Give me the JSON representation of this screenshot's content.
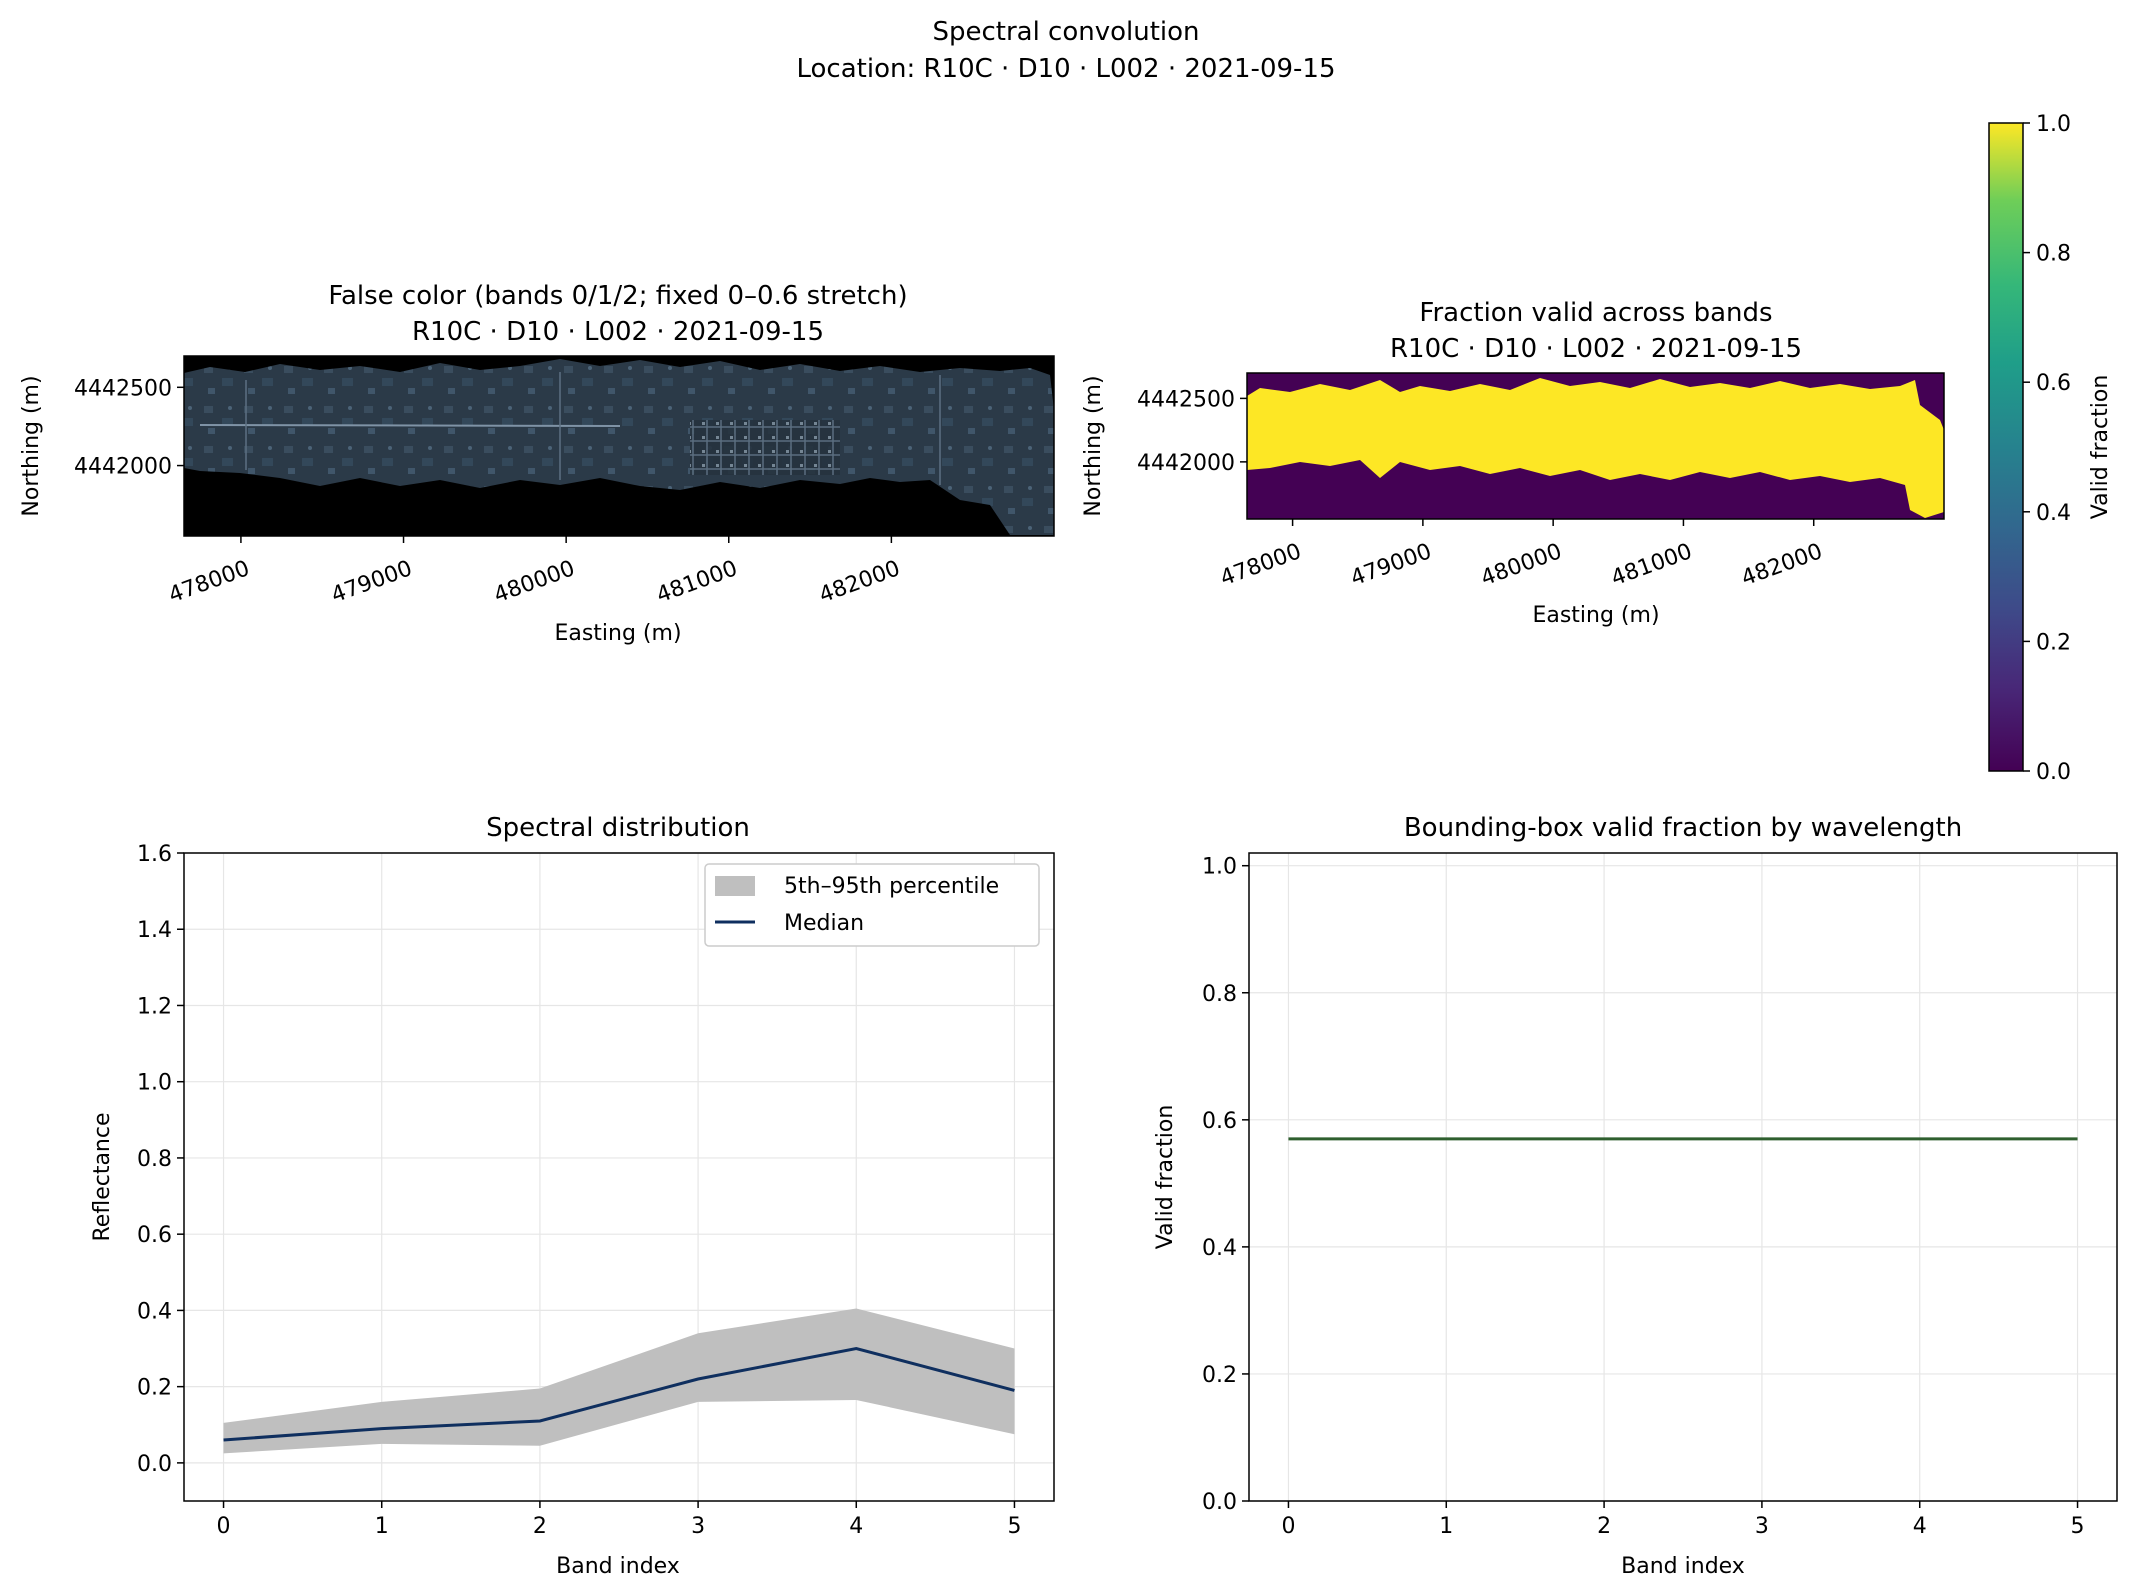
{
  "suptitle": "Spectral convolution",
  "suptitle_sub": "Location: R10C · D10 · L002 · 2021-09-15",
  "colors": {
    "median": "#0f2f5f",
    "band": "#bfbfbf",
    "valid_line": "#2f5f2f",
    "grid": "#e6e6e6",
    "map_dark": "#000000",
    "mask_yellow": "#fde725",
    "mask_purple": "#440154"
  },
  "chart_data": [
    {
      "id": "false_color",
      "type": "image",
      "title": "False color (bands 0/1/2; fixed 0–0.6 stretch)",
      "subtitle": "R10C · D10 · L002 · 2021-09-15",
      "xlabel": "Easting (m)",
      "ylabel": "Northing (m)",
      "xlim": [
        477650,
        483000
      ],
      "ylim": [
        4441550,
        4442700
      ],
      "xticks": [
        478000,
        479000,
        480000,
        481000,
        482000
      ],
      "yticks": [
        4442000,
        4442500
      ],
      "xtick_labels": [
        "478000",
        "479000",
        "480000",
        "481000",
        "482000"
      ],
      "ytick_labels": [
        "4442000",
        "4442500"
      ]
    },
    {
      "id": "fraction_valid",
      "type": "heatmap",
      "title": "Fraction valid across bands",
      "subtitle": "R10C · D10 · L002 · 2021-09-15",
      "xlabel": "Easting (m)",
      "ylabel": "Northing (m)",
      "xlim": [
        477650,
        483000
      ],
      "ylim": [
        4441550,
        4442700
      ],
      "xticks": [
        478000,
        479000,
        480000,
        481000,
        482000
      ],
      "yticks": [
        4442000,
        4442500
      ],
      "xtick_labels": [
        "478000",
        "479000",
        "480000",
        "481000",
        "482000"
      ],
      "ytick_labels": [
        "4442000",
        "4442500"
      ],
      "colorbar": {
        "label": "Valid fraction",
        "range": [
          0.0,
          1.0
        ],
        "ticks": [
          0.0,
          0.2,
          0.4,
          0.6,
          0.8,
          1.0
        ],
        "tick_labels": [
          "0.0",
          "0.2",
          "0.4",
          "0.6",
          "0.8",
          "1.0"
        ],
        "colormap": "viridis"
      }
    },
    {
      "id": "spectral_distribution",
      "type": "line",
      "title": "Spectral distribution",
      "xlabel": "Band index",
      "ylabel": "Reflectance",
      "x": [
        0,
        1,
        2,
        3,
        4,
        5
      ],
      "xlim": [
        -0.25,
        5.25
      ],
      "ylim": [
        -0.1,
        1.6
      ],
      "xticks": [
        0,
        1,
        2,
        3,
        4,
        5
      ],
      "xtick_labels": [
        "0",
        "1",
        "2",
        "3",
        "4",
        "5"
      ],
      "yticks": [
        0.0,
        0.2,
        0.4,
        0.6,
        0.8,
        1.0,
        1.2,
        1.4,
        1.6
      ],
      "ytick_labels": [
        "0.0",
        "0.2",
        "0.4",
        "0.6",
        "0.8",
        "1.0",
        "1.2",
        "1.4",
        "1.6"
      ],
      "grid": true,
      "legend_position": "top-right",
      "band": {
        "name": "5th–95th percentile",
        "low": [
          0.025,
          0.05,
          0.045,
          0.16,
          0.165,
          0.075
        ],
        "high": [
          0.105,
          0.16,
          0.195,
          0.34,
          0.405,
          0.3
        ]
      },
      "series": [
        {
          "name": "Median",
          "values": [
            0.06,
            0.09,
            0.11,
            0.22,
            0.3,
            0.19
          ]
        }
      ]
    },
    {
      "id": "bbox_valid_fraction",
      "type": "line",
      "title": "Bounding-box valid fraction by wavelength",
      "xlabel": "Band index",
      "ylabel": "Valid fraction",
      "x": [
        0,
        1,
        2,
        3,
        4,
        5
      ],
      "xlim": [
        -0.25,
        5.25
      ],
      "ylim": [
        0.0,
        1.02
      ],
      "xticks": [
        0,
        1,
        2,
        3,
        4,
        5
      ],
      "xtick_labels": [
        "0",
        "1",
        "2",
        "3",
        "4",
        "5"
      ],
      "yticks": [
        0.0,
        0.2,
        0.4,
        0.6,
        0.8,
        1.0
      ],
      "ytick_labels": [
        "0.0",
        "0.2",
        "0.4",
        "0.6",
        "0.8",
        "1.0"
      ],
      "grid": true,
      "series": [
        {
          "values": [
            0.57,
            0.57,
            0.57,
            0.57,
            0.57,
            0.57
          ]
        }
      ]
    }
  ]
}
